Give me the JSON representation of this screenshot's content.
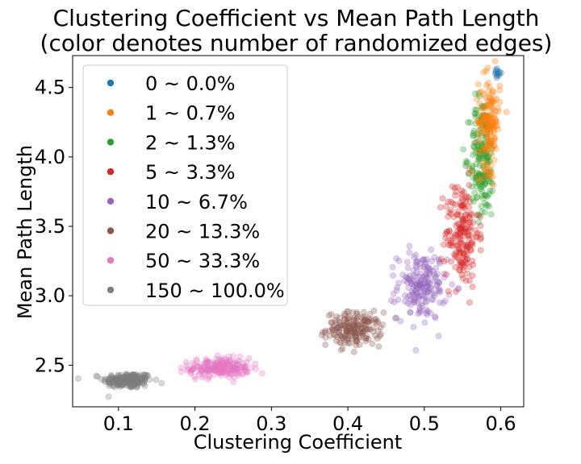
{
  "chart_data": {
    "type": "scatter",
    "title_lines": [
      "Clustering Coefficient vs Mean Path Length",
      "(color denotes number of randomized edges)"
    ],
    "xlabel": "Clustering Coefficient",
    "ylabel": "Mean Path Length",
    "xlim": [
      0.04,
      0.63
    ],
    "ylim": [
      2.2,
      4.73
    ],
    "x_ticks": [
      0.1,
      0.2,
      0.3,
      0.4,
      0.5,
      0.6
    ],
    "x_tick_labels": [
      "0.1",
      "0.2",
      "0.3",
      "0.4",
      "0.5",
      "0.6"
    ],
    "y_ticks": [
      2.5,
      3.0,
      3.5,
      4.0,
      4.5
    ],
    "y_tick_labels": [
      "2.5",
      "3.0",
      "3.5",
      "4.0",
      "4.5"
    ],
    "grid": false,
    "legend_position": "top-left",
    "marker_alpha": 0.3,
    "series": [
      {
        "name": "0 ~ 0.0%",
        "color": "#1f77b4",
        "cx": 0.595,
        "cy": 4.6,
        "sx": 0.003,
        "sy": 0.02,
        "n": 12
      },
      {
        "name": "1 ~ 0.7%",
        "color": "#ff7f0e",
        "cx": 0.585,
        "cy": 4.25,
        "sx": 0.007,
        "sy": 0.17,
        "n": 160
      },
      {
        "name": "2 ~ 1.3%",
        "color": "#2ca02c",
        "cx": 0.576,
        "cy": 4.0,
        "sx": 0.008,
        "sy": 0.22,
        "n": 190
      },
      {
        "name": "5 ~ 3.3%",
        "color": "#d62728",
        "cx": 0.549,
        "cy": 3.45,
        "sx": 0.011,
        "sy": 0.19,
        "n": 190
      },
      {
        "name": "10 ~ 6.7%",
        "color": "#9467bd",
        "cx": 0.497,
        "cy": 3.07,
        "sx": 0.016,
        "sy": 0.12,
        "n": 190
      },
      {
        "name": "20 ~ 13.3%",
        "color": "#8c564b",
        "cx": 0.408,
        "cy": 2.76,
        "sx": 0.018,
        "sy": 0.06,
        "n": 180
      },
      {
        "name": "50 ~ 33.3%",
        "color": "#e377c2",
        "cx": 0.232,
        "cy": 2.48,
        "sx": 0.02,
        "sy": 0.035,
        "n": 200
      },
      {
        "name": "150 ~ 100.0%",
        "color": "#7f7f7f",
        "cx": 0.112,
        "cy": 2.39,
        "sx": 0.016,
        "sy": 0.028,
        "n": 210
      }
    ]
  }
}
